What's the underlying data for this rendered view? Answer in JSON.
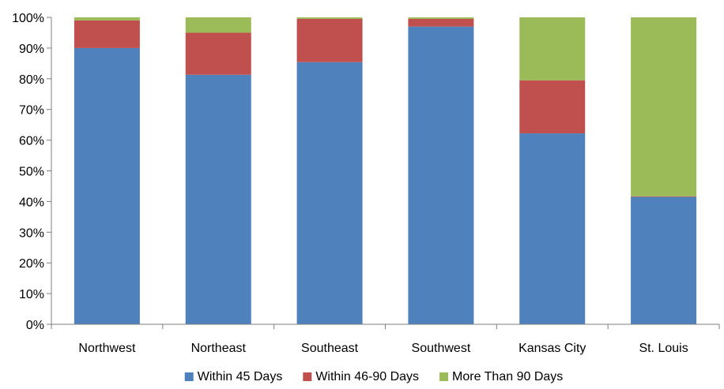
{
  "chart_data": {
    "type": "bar",
    "stacked": true,
    "percent": true,
    "categories": [
      "Northwest",
      "Northeast",
      "Southeast",
      "Southwest",
      "Kansas City",
      "St. Louis"
    ],
    "series": [
      {
        "name": "Within 45 Days",
        "color": "#4f81bd",
        "values": [
          90,
          81.3,
          85.4,
          97,
          62.2,
          41.5
        ]
      },
      {
        "name": "Within 46-90 Days",
        "color": "#c0504d",
        "values": [
          9,
          13.7,
          14.1,
          2.5,
          17.3,
          0.2
        ]
      },
      {
        "name": "More Than 90 Days",
        "color": "#9bbb59",
        "values": [
          1,
          5,
          0.5,
          0.5,
          20.5,
          58.3
        ]
      }
    ],
    "yticks": [
      "0%",
      "10%",
      "20%",
      "30%",
      "40%",
      "50%",
      "60%",
      "70%",
      "80%",
      "90%",
      "100%"
    ],
    "ylim": [
      0,
      100
    ],
    "grid": false,
    "legend_position": "bottom",
    "title": "",
    "xlabel": "",
    "ylabel": ""
  }
}
